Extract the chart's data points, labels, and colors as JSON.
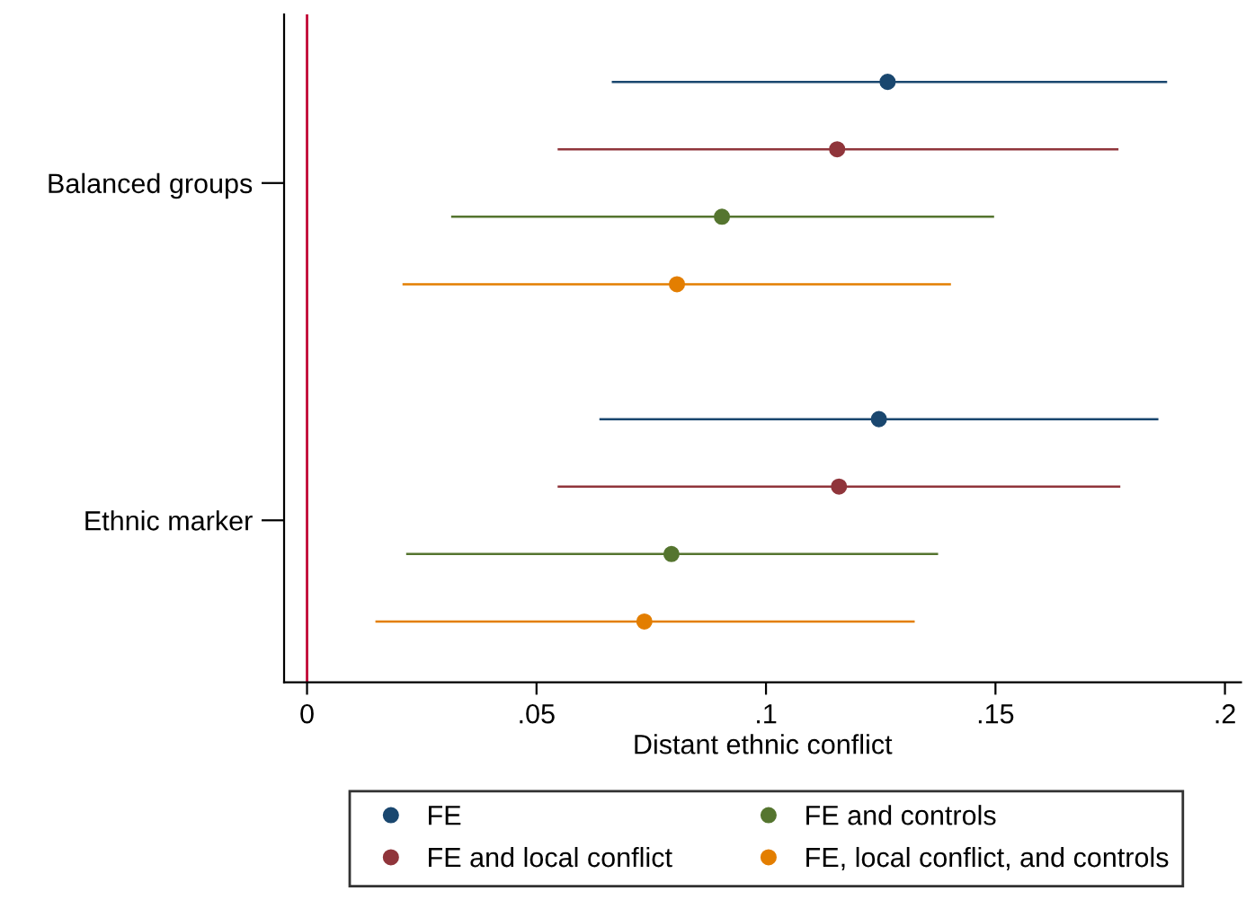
{
  "chart_data": {
    "type": "scatter",
    "orientation": "horizontal",
    "xlabel": "Distant ethnic conflict",
    "categories": [
      "Balanced groups",
      "Ethnic marker"
    ],
    "series": [
      {
        "name": "FE",
        "color": "#1a476f",
        "values": [
          0.1265,
          0.1246
        ],
        "errors": [
          [
            0.0664,
            0.1874
          ],
          [
            0.0637,
            0.1855
          ]
        ]
      },
      {
        "name": "FE and local conflict",
        "color": "#90353b",
        "values": [
          0.1155,
          0.1159
        ],
        "errors": [
          [
            0.0546,
            0.1768
          ],
          [
            0.0546,
            0.1772
          ]
        ]
      },
      {
        "name": "FE and controls",
        "color": "#55752f",
        "values": [
          0.0904,
          0.0794
        ],
        "errors": [
          [
            0.0314,
            0.1497
          ],
          [
            0.0216,
            0.1375
          ]
        ]
      },
      {
        "name": "FE, local conflict, and controls",
        "color": "#e37e00",
        "values": [
          0.0806,
          0.0735
        ],
        "errors": [
          [
            0.0208,
            0.1403
          ],
          [
            0.0149,
            0.1324
          ]
        ]
      }
    ],
    "xlim": [
      -0.005,
      0.2035
    ],
    "xticks": [
      0,
      {
        "value": 0.05,
        "label": ".05"
      },
      {
        "value": 0.1,
        "label": ".1"
      },
      {
        "value": 0.15,
        "label": ".15"
      },
      {
        "value": 0.2,
        "label": ".2"
      }
    ],
    "ref_lines": [
      {
        "axis": "x",
        "value": 0,
        "label": null,
        "color": "#c10534"
      }
    ],
    "marker": "circle",
    "legend": "bottom",
    "grid": false
  }
}
